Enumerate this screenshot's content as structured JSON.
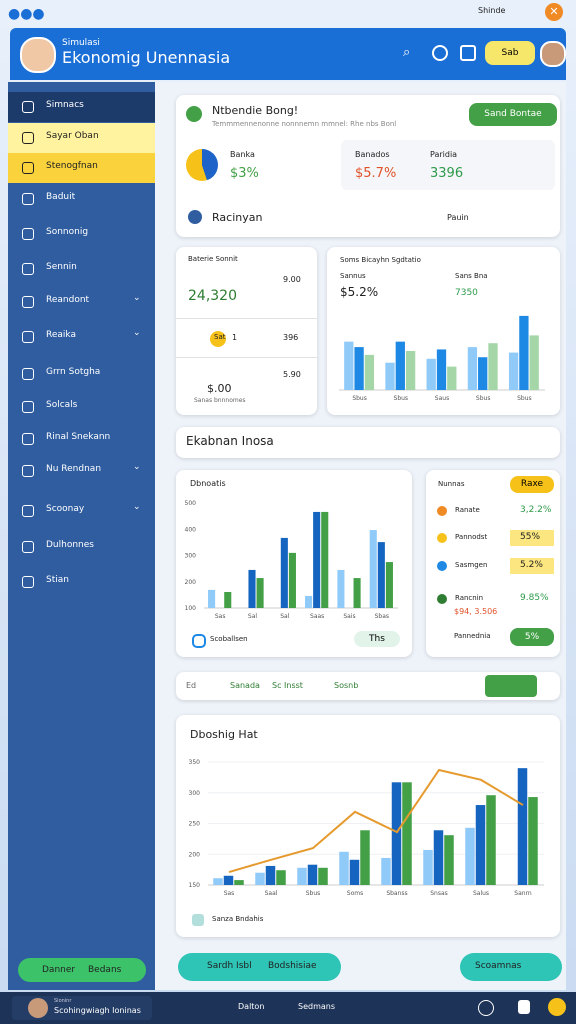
{
  "status": {
    "label": "Shinde"
  },
  "header": {
    "subtitle": "Simulasi",
    "title": "Ekonomig Unennasia",
    "button": "Sab"
  },
  "sidebar": {
    "items": [
      "Simnacs",
      "Sayar Oban",
      "Stenogfnan",
      "Baduit",
      "Sonnonig",
      "Sennin",
      "Reandont",
      "Reaika",
      "Grrn Sotgha",
      "Solcals",
      "Rinal Snekann",
      "Nu Rendnan",
      "Scoonay",
      "Dulhonnes",
      "Stian"
    ],
    "button_left": "Danner",
    "button_right": "Bedans"
  },
  "summary": {
    "title": "Ntbendie Bong!",
    "subtitle": "Temmmennenonne nonnnemn mmnel: Rhe nbs Bonl",
    "button": "Sand Bontae",
    "stats": [
      {
        "label": "Banka",
        "value": "$3%"
      },
      {
        "label": "Banados",
        "value": "$5.7%"
      },
      {
        "label": "Paridia",
        "value": "3396"
      }
    ],
    "row_label": "Racinyan",
    "row_right": "Pauin"
  },
  "mini": {
    "title": "Baterie Sonnit",
    "side": "9.00",
    "value": "24,320",
    "rows": [
      "Sat",
      "1",
      "396",
      "$.00",
      "5.90"
    ],
    "note": "Sanas bnnnomes"
  },
  "kpi": {
    "left_label": "Sannus",
    "left_value": "$5.2%",
    "right_label": "Sans Bna",
    "right_value": "7350"
  },
  "search": {
    "label": "Ekabnan Inosa"
  },
  "bars_card": {
    "legend": "Scoballsen",
    "button": "Ths"
  },
  "list": {
    "header": "Nunnas",
    "pill": "Raxe",
    "items": [
      {
        "label": "Ranate",
        "value": "3,2.2%"
      },
      {
        "label": "Pannodst",
        "value": "55%"
      },
      {
        "label": "Sasmgen",
        "value": "5.2%"
      },
      {
        "label": "Rancnin",
        "value": "9.85%",
        "sub": "$94, 3.506"
      }
    ],
    "button_label": "Pannednia",
    "button_value": "5%"
  },
  "tabs": [
    "Ed",
    "Sanada",
    "Sc Insst",
    "Sosnb"
  ],
  "combo_card": {
    "legend": "Sanza Bndahis"
  },
  "actions": [
    "Sardh Isbl",
    "Bodshisiae",
    "Scoamnas"
  ],
  "footer": {
    "caption": "Sloninr",
    "name": "Scohingwiagh Ioninas",
    "center": "Dalton",
    "right": "Sedmans"
  },
  "chart_data": [
    {
      "type": "bar",
      "title": "Soms Bicayhn Sgdtatio",
      "categories": [
        "Sbus",
        "Sbus",
        "Saus",
        "Sbus",
        "Sbus"
      ],
      "ylim": [
        0,
        100
      ],
      "series": [
        {
          "color": "#90caf9",
          "values": [
            62,
            35,
            40,
            55,
            48
          ]
        },
        {
          "color": "#1e88e5",
          "values": [
            55,
            62,
            52,
            42,
            95
          ]
        },
        {
          "color": "#a5d6a7",
          "values": [
            45,
            50,
            30,
            60,
            70
          ]
        }
      ]
    },
    {
      "type": "bar",
      "title": "Dbnoatis",
      "categories": [
        "Sas",
        "Sal",
        "Sal",
        "Saas",
        "Sais",
        "Sbas"
      ],
      "ylim": [
        100,
        500
      ],
      "yticks": [
        100,
        200,
        300,
        400,
        500
      ],
      "series": [
        {
          "color": "#90caf9",
          "values": [
            169,
            null,
            null,
            146,
            245,
            397
          ]
        },
        {
          "color": "#1565c0",
          "values": [
            null,
            245,
            367,
            466,
            null,
            351
          ]
        },
        {
          "color": "#43a047",
          "values": [
            161,
            214,
            310,
            466,
            214,
            275
          ]
        }
      ]
    },
    {
      "type": "bar",
      "title": "Dboshig Hat",
      "categories": [
        "Sas",
        "Saal",
        "Sbus",
        "Soms",
        "Sbanss",
        "Snsas",
        "Salus",
        "Sanrn"
      ],
      "ylim": [
        150,
        350
      ],
      "yticks": [
        150,
        200,
        250,
        300,
        350
      ],
      "grid": true,
      "series": [
        {
          "color": "#90caf9",
          "values": [
            161,
            170,
            178,
            204,
            194,
            207,
            243,
            null
          ]
        },
        {
          "color": "#1565c0",
          "values": [
            165,
            181,
            183,
            191,
            317,
            239,
            280,
            340
          ]
        },
        {
          "color": "#43a047",
          "values": [
            158,
            174,
            178,
            239,
            317,
            231,
            296,
            293
          ]
        },
        {
          "type": "line",
          "color": "#e69a2e",
          "values": [
            171,
            191,
            210,
            269,
            236,
            337,
            321,
            280
          ]
        }
      ]
    }
  ]
}
